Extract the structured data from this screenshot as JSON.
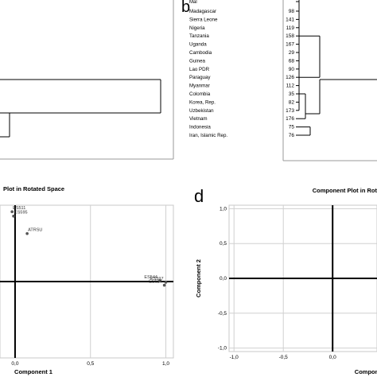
{
  "panels": {
    "b": {
      "letter": "b"
    },
    "d": {
      "letter": "d"
    }
  },
  "dendrogram_labels": {
    "countries": [
      "Madagascar",
      "Sierra Leone",
      "Nigeria",
      "Tanzania",
      "Uganda",
      "Cambodia",
      "Guinea",
      "Lao PDR",
      "Paraguay",
      "Myanmar",
      "Colombia",
      "Korea, Rep.",
      "Uzbekistan",
      "Vietnam",
      "Indonesia",
      "Iran, Islamic Rep."
    ],
    "case_numbers": [
      "98",
      "141",
      "119",
      "158",
      "167",
      "29",
      "68",
      "90",
      "126",
      "112",
      "35",
      "82",
      "173",
      "176",
      "75",
      "76"
    ]
  },
  "chart_data": [
    {
      "type": "scatter",
      "panel": "c",
      "title": "Plot in Rotated Space",
      "xlabel": "Component 1",
      "ylabel": "",
      "xlim": [
        -0.1,
        1.05
      ],
      "ylim": [
        -1.05,
        1.05
      ],
      "x_ticks": [
        0.0,
        0.5,
        1.0
      ],
      "x_tick_labels": [
        "0,0",
        "0,5",
        "1,0"
      ],
      "grid": true,
      "points": [
        {
          "label": "ES511",
          "x": -0.02,
          "y": 0.96
        },
        {
          "label": "ES595",
          "x": -0.01,
          "y": 0.9
        },
        {
          "label": "ATRSU",
          "x": 0.08,
          "y": 0.66
        },
        {
          "label": "ES544",
          "x": 0.96,
          "y": 0.01
        },
        {
          "label": "ES597",
          "x": 1.0,
          "y": -0.01
        },
        {
          "label": "ES624",
          "x": 0.99,
          "y": -0.05
        }
      ]
    },
    {
      "type": "scatter",
      "panel": "d",
      "title": "Component Plot in Rot",
      "xlabel": "Compon",
      "ylabel": "Component 2",
      "xlim": [
        -1.05,
        0.45
      ],
      "ylim": [
        -1.05,
        1.05
      ],
      "x_ticks": [
        -1.0,
        -0.5,
        0.0
      ],
      "x_tick_labels": [
        "-1,0",
        "-0,5",
        "0,0"
      ],
      "y_ticks": [
        1.0,
        0.5,
        0.0,
        -0.5,
        -1.0
      ],
      "y_tick_labels": [
        "1,0",
        "0,5",
        "0,0",
        "-0,5",
        "-1,0"
      ],
      "grid": true,
      "points": []
    }
  ]
}
